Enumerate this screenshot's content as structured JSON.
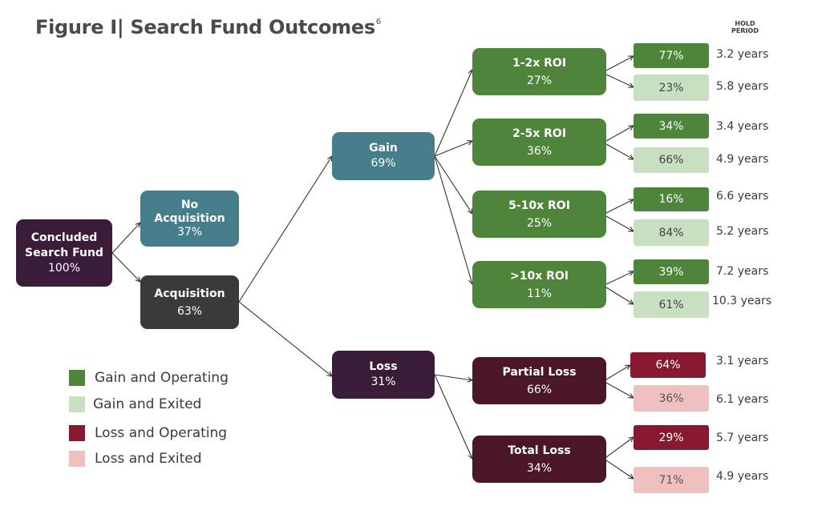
{
  "figure": {
    "title": "Figure I|  Search Fund Outcomes",
    "footnote": "6",
    "hold_period_header": [
      "HOLD",
      "PERIOD"
    ]
  },
  "colors": {
    "root": "#3b1b3a",
    "no_acquisition": "#457e8a",
    "acquisition": "#3c393c",
    "gain": "#457e8a",
    "roi": "#4e853b",
    "loss": "#3b1c38",
    "loss_type": "#4b1728",
    "gain_operating": "#4e853b",
    "gain_exited": "#c8dfc2",
    "loss_operating": "#861830",
    "loss_exited": "#f0c0c0",
    "edge": "#333333"
  },
  "tree": {
    "root": {
      "label": [
        "Concluded",
        "Search Fund"
      ],
      "pct": "100%"
    },
    "no_acquisition": {
      "label": [
        "No",
        "Acquisition"
      ],
      "pct": "37%"
    },
    "acquisition": {
      "label": [
        "Acquisition"
      ],
      "pct": "63%"
    },
    "gain": {
      "label": [
        "Gain"
      ],
      "pct": "69%"
    },
    "loss": {
      "label": [
        "Loss"
      ],
      "pct": "31%"
    },
    "gain_branches": [
      {
        "label": "1-2x ROI",
        "pct": "27%",
        "operating": "77%",
        "exited": "23%",
        "operating_years": "3.2 years",
        "exited_years": "5.8 years"
      },
      {
        "label": "2-5x ROI",
        "pct": "36%",
        "operating": "34%",
        "exited": "66%",
        "operating_years": "3.4 years",
        "exited_years": "4.9 years"
      },
      {
        "label": "5-10x ROI",
        "pct": "25%",
        "operating": "16%",
        "exited": "84%",
        "operating_years": "6.6 years",
        "exited_years": "5.2 years"
      },
      {
        "label": ">10x ROI",
        "pct": "11%",
        "operating": "39%",
        "exited": "61%",
        "operating_years": "7.2 years",
        "exited_years": "10.3 years"
      }
    ],
    "loss_branches": [
      {
        "label": "Partial Loss",
        "pct": "66%",
        "operating": "64%",
        "exited": "36%",
        "operating_years": "3.1 years",
        "exited_years": "6.1 years"
      },
      {
        "label": "Total Loss",
        "pct": "34%",
        "operating": "29%",
        "exited": "71%",
        "operating_years": "5.7 years",
        "exited_years": "4.9 years"
      }
    ]
  },
  "legend": [
    {
      "key": "gain_operating",
      "label": "Gain and Operating"
    },
    {
      "key": "gain_exited",
      "label": "Gain and Exited"
    },
    {
      "key": "loss_operating",
      "label": "Loss and Operating"
    },
    {
      "key": "loss_exited",
      "label": "Loss and Exited"
    }
  ]
}
